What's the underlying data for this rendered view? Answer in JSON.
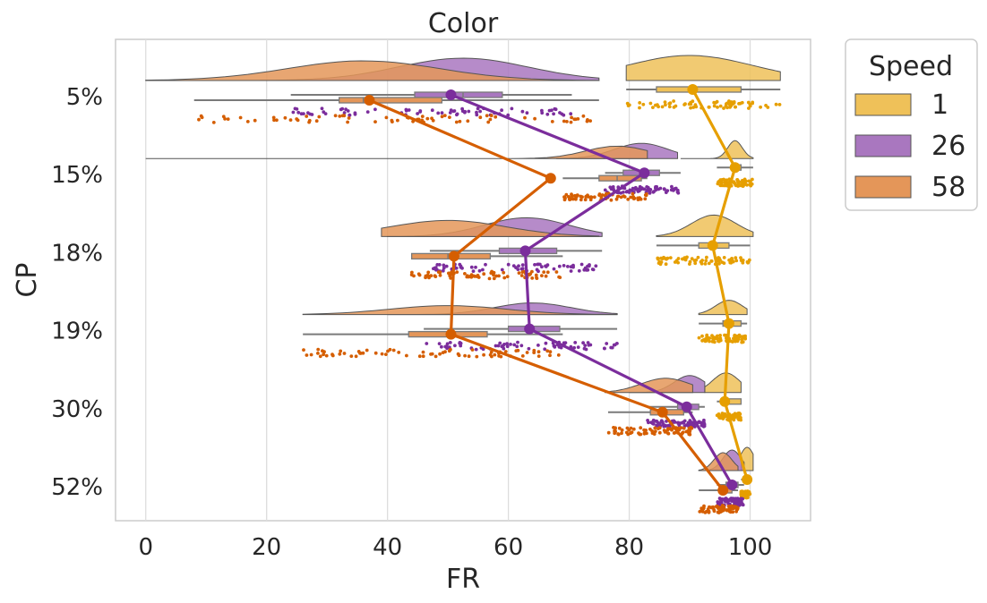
{
  "chart_data": {
    "type": "raincloud",
    "title": "Color",
    "xlabel": "FR",
    "ylabel": "CP",
    "xlim": [
      -5,
      110
    ],
    "xticks": [
      0,
      20,
      40,
      60,
      80,
      100
    ],
    "xtick_labels": [
      "0",
      "20",
      "40",
      "60",
      "80",
      "100"
    ],
    "categories": [
      "5%",
      "15%",
      "18%",
      "19%",
      "30%",
      "52%"
    ],
    "grid": true,
    "legend": {
      "title": "Speed",
      "position": "outside-right"
    },
    "series": [
      {
        "name": "1",
        "color": "#E69F00",
        "means": [
          90.5,
          97.5,
          93.8,
          96.5,
          95.8,
          99.5
        ],
        "stats": [
          {
            "min": 79.5,
            "q1": 84.5,
            "median": 90,
            "q3": 98.5,
            "max": 105
          },
          {
            "min": 94.5,
            "q1": 97,
            "median": 97.5,
            "q3": 98.5,
            "max": 100.5
          },
          {
            "min": 84.5,
            "q1": 91.5,
            "median": 94,
            "q3": 96.5,
            "max": 100
          },
          {
            "min": 91.5,
            "q1": 95.5,
            "median": 96.5,
            "q3": 98.5,
            "max": 99.5
          },
          {
            "min": 94.5,
            "q1": 95.5,
            "median": 96,
            "q3": 98.5,
            "max": 98.5
          },
          {
            "min": 98.5,
            "q1": 99.2,
            "median": 99.5,
            "q3": 100,
            "max": 100
          }
        ],
        "ranges": [
          [
            79.5,
            105
          ],
          [
            88.5,
            100.5
          ],
          [
            84.5,
            100.5
          ],
          [
            91.5,
            99.5
          ],
          [
            92.5,
            98.5
          ],
          [
            98.5,
            100.5
          ]
        ]
      },
      {
        "name": "26",
        "color": "#7B2D9C",
        "means": [
          50.5,
          82.5,
          62.8,
          63.5,
          89.5,
          97
        ],
        "stats": [
          {
            "min": 24,
            "q1": 44.5,
            "median": 52.5,
            "q3": 59,
            "max": 70.5
          },
          {
            "min": 76,
            "q1": 79,
            "median": 82,
            "q3": 85,
            "max": 88.5
          },
          {
            "min": 47,
            "q1": 58.5,
            "median": 63,
            "q3": 68,
            "max": 75.5
          },
          {
            "min": 46,
            "q1": 60,
            "median": 64,
            "q3": 68.5,
            "max": 78
          },
          {
            "min": 83,
            "q1": 88,
            "median": 90,
            "q3": 91.5,
            "max": 92.5
          },
          {
            "min": 94.5,
            "q1": 96,
            "median": 97,
            "q3": 98,
            "max": 99
          }
        ],
        "ranges": [
          [
            19,
            75
          ],
          [
            68,
            88
          ],
          [
            40,
            75.5
          ],
          [
            40,
            78
          ],
          [
            80,
            92.5
          ],
          [
            93,
            99
          ]
        ]
      },
      {
        "name": "58",
        "color": "#D55E00",
        "means": [
          37,
          67,
          51,
          50.5,
          85.5,
          95.5
        ],
        "stats": [
          {
            "min": 8,
            "q1": 32,
            "median": 36,
            "q3": 49,
            "max": 75
          },
          {
            "min": 69,
            "q1": 75,
            "median": 78,
            "q3": 82,
            "max": 83
          },
          {
            "min": 44,
            "q1": 44,
            "median": 50,
            "q3": 57,
            "max": 69
          },
          {
            "min": 26,
            "q1": 43.5,
            "median": 50,
            "q3": 56.5,
            "max": 69
          },
          {
            "min": 76.5,
            "q1": 83.5,
            "median": 86,
            "q3": 89,
            "max": 90.5
          },
          {
            "min": 91.5,
            "q1": 95,
            "median": 95.5,
            "q3": 97,
            "max": 98
          }
        ],
        "ranges": [
          [
            0,
            75
          ],
          [
            0,
            83
          ],
          [
            39,
            75
          ],
          [
            26,
            78
          ],
          [
            76,
            90.5
          ],
          [
            91.5,
            98
          ]
        ]
      }
    ]
  }
}
